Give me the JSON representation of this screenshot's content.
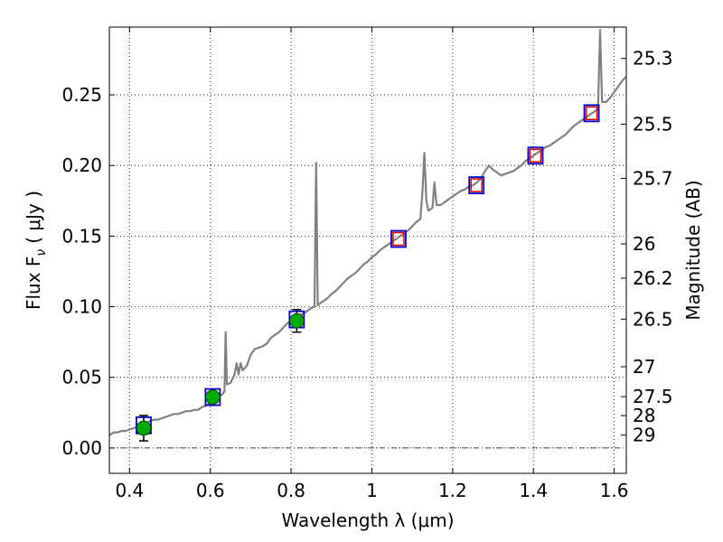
{
  "chart_data": {
    "type": "scatter",
    "title": "",
    "xlabel": "Wavelength  λ (μm)",
    "ylabel": "Flux  F",
    "ylabel_sub": "ν",
    "ylabel_unit": "( μJy )",
    "y2label": "Magnitude (AB)",
    "xlim": [
      0.35,
      1.63
    ],
    "ylim": [
      -0.018,
      0.298
    ],
    "grid": true,
    "x_ticks": [
      {
        "value": 0.4,
        "label": "0.4"
      },
      {
        "value": 0.6,
        "label": "0.6"
      },
      {
        "value": 0.8,
        "label": "0.8"
      },
      {
        "value": 1.0,
        "label": "1"
      },
      {
        "value": 1.2,
        "label": "1.2"
      },
      {
        "value": 1.4,
        "label": "1.4"
      },
      {
        "value": 1.6,
        "label": "1.6"
      }
    ],
    "y_ticks": [
      {
        "value": 0.0,
        "label": "0.00"
      },
      {
        "value": 0.05,
        "label": "0.05"
      },
      {
        "value": 0.1,
        "label": "0.10"
      },
      {
        "value": 0.15,
        "label": "0.15"
      },
      {
        "value": 0.2,
        "label": "0.20"
      },
      {
        "value": 0.25,
        "label": "0.25"
      }
    ],
    "mag_ticks": [
      {
        "flux": 0.2758,
        "label": "25.3"
      },
      {
        "flux": 0.2293,
        "label": "25.5"
      },
      {
        "flux": 0.1908,
        "label": "25.7"
      },
      {
        "flux": 0.1445,
        "label": "26"
      },
      {
        "flux": 0.1202,
        "label": "26.2"
      },
      {
        "flux": 0.0912,
        "label": "26.5"
      },
      {
        "flux": 0.0575,
        "label": "27"
      },
      {
        "flux": 0.0363,
        "label": "27.5"
      },
      {
        "flux": 0.0229,
        "label": "28"
      },
      {
        "flux": 0.0091,
        "label": "29"
      }
    ],
    "colors": {
      "spectrum": "#808080",
      "model_box": "#0000cc",
      "observed_point": "#00aa00",
      "upper_box": "#dd0000",
      "errorbar": "#000000",
      "zero_line": "#000000"
    },
    "spectrum": [
      [
        0.35,
        0.009
      ],
      [
        0.36,
        0.011
      ],
      [
        0.37,
        0.011
      ],
      [
        0.38,
        0.012
      ],
      [
        0.39,
        0.012
      ],
      [
        0.4,
        0.013
      ],
      [
        0.41,
        0.014
      ],
      [
        0.42,
        0.015
      ],
      [
        0.43,
        0.016
      ],
      [
        0.44,
        0.017
      ],
      [
        0.45,
        0.019
      ],
      [
        0.46,
        0.02
      ],
      [
        0.47,
        0.02
      ],
      [
        0.48,
        0.021
      ],
      [
        0.49,
        0.022
      ],
      [
        0.5,
        0.023
      ],
      [
        0.51,
        0.024
      ],
      [
        0.52,
        0.024
      ],
      [
        0.53,
        0.025
      ],
      [
        0.54,
        0.026
      ],
      [
        0.55,
        0.026
      ],
      [
        0.56,
        0.027
      ],
      [
        0.57,
        0.027
      ],
      [
        0.58,
        0.029
      ],
      [
        0.59,
        0.03
      ],
      [
        0.6,
        0.032
      ],
      [
        0.61,
        0.034
      ],
      [
        0.62,
        0.036
      ],
      [
        0.63,
        0.038
      ],
      [
        0.635,
        0.04
      ],
      [
        0.638,
        0.082
      ],
      [
        0.641,
        0.045
      ],
      [
        0.65,
        0.046
      ],
      [
        0.66,
        0.052
      ],
      [
        0.665,
        0.06
      ],
      [
        0.67,
        0.052
      ],
      [
        0.675,
        0.06
      ],
      [
        0.68,
        0.055
      ],
      [
        0.69,
        0.058
      ],
      [
        0.7,
        0.066
      ],
      [
        0.71,
        0.07
      ],
      [
        0.72,
        0.071
      ],
      [
        0.73,
        0.072
      ],
      [
        0.74,
        0.074
      ],
      [
        0.75,
        0.078
      ],
      [
        0.76,
        0.08
      ],
      [
        0.77,
        0.082
      ],
      [
        0.78,
        0.085
      ],
      [
        0.79,
        0.088
      ],
      [
        0.8,
        0.09
      ],
      [
        0.81,
        0.093
      ],
      [
        0.82,
        0.094
      ],
      [
        0.83,
        0.095
      ],
      [
        0.84,
        0.097
      ],
      [
        0.85,
        0.099
      ],
      [
        0.858,
        0.1
      ],
      [
        0.862,
        0.202
      ],
      [
        0.866,
        0.101
      ],
      [
        0.87,
        0.102
      ],
      [
        0.88,
        0.104
      ],
      [
        0.89,
        0.106
      ],
      [
        0.9,
        0.109
      ],
      [
        0.91,
        0.111
      ],
      [
        0.92,
        0.114
      ],
      [
        0.93,
        0.117
      ],
      [
        0.94,
        0.12
      ],
      [
        0.95,
        0.122
      ],
      [
        0.96,
        0.124
      ],
      [
        0.97,
        0.127
      ],
      [
        0.98,
        0.13
      ],
      [
        0.99,
        0.132
      ],
      [
        1.0,
        0.135
      ],
      [
        1.01,
        0.137
      ],
      [
        1.02,
        0.14
      ],
      [
        1.03,
        0.142
      ],
      [
        1.04,
        0.144
      ],
      [
        1.05,
        0.146
      ],
      [
        1.06,
        0.148
      ],
      [
        1.07,
        0.15
      ],
      [
        1.08,
        0.152
      ],
      [
        1.09,
        0.154
      ],
      [
        1.1,
        0.157
      ],
      [
        1.11,
        0.16
      ],
      [
        1.12,
        0.162
      ],
      [
        1.125,
        0.18
      ],
      [
        1.13,
        0.209
      ],
      [
        1.135,
        0.175
      ],
      [
        1.14,
        0.168
      ],
      [
        1.15,
        0.17
      ],
      [
        1.155,
        0.188
      ],
      [
        1.16,
        0.172
      ],
      [
        1.17,
        0.172
      ],
      [
        1.18,
        0.174
      ],
      [
        1.19,
        0.176
      ],
      [
        1.2,
        0.178
      ],
      [
        1.21,
        0.18
      ],
      [
        1.22,
        0.182
      ],
      [
        1.23,
        0.183
      ],
      [
        1.24,
        0.185
      ],
      [
        1.25,
        0.186
      ],
      [
        1.26,
        0.188
      ],
      [
        1.27,
        0.191
      ],
      [
        1.28,
        0.196
      ],
      [
        1.29,
        0.2
      ],
      [
        1.3,
        0.197
      ],
      [
        1.31,
        0.195
      ],
      [
        1.32,
        0.193
      ],
      [
        1.33,
        0.194
      ],
      [
        1.34,
        0.195
      ],
      [
        1.35,
        0.196
      ],
      [
        1.36,
        0.198
      ],
      [
        1.37,
        0.2
      ],
      [
        1.38,
        0.203
      ],
      [
        1.39,
        0.205
      ],
      [
        1.4,
        0.207
      ],
      [
        1.41,
        0.209
      ],
      [
        1.42,
        0.211
      ],
      [
        1.43,
        0.213
      ],
      [
        1.44,
        0.214
      ],
      [
        1.45,
        0.216
      ],
      [
        1.46,
        0.218
      ],
      [
        1.47,
        0.22
      ],
      [
        1.48,
        0.222
      ],
      [
        1.49,
        0.225
      ],
      [
        1.5,
        0.228
      ],
      [
        1.51,
        0.23
      ],
      [
        1.52,
        0.232
      ],
      [
        1.53,
        0.234
      ],
      [
        1.54,
        0.236
      ],
      [
        1.55,
        0.238
      ],
      [
        1.56,
        0.24
      ],
      [
        1.565,
        0.296
      ],
      [
        1.57,
        0.245
      ],
      [
        1.58,
        0.245
      ],
      [
        1.59,
        0.248
      ],
      [
        1.6,
        0.252
      ],
      [
        1.61,
        0.256
      ],
      [
        1.62,
        0.26
      ],
      [
        1.63,
        0.263
      ]
    ],
    "model_boxes": [
      {
        "x": 0.435,
        "y": 0.016
      },
      {
        "x": 0.606,
        "y": 0.036
      },
      {
        "x": 0.814,
        "y": 0.091
      },
      {
        "x": 1.066,
        "y": 0.148
      },
      {
        "x": 1.259,
        "y": 0.186
      },
      {
        "x": 1.405,
        "y": 0.207
      },
      {
        "x": 1.544,
        "y": 0.237
      }
    ],
    "observed_points": [
      {
        "x": 0.435,
        "y": 0.014,
        "yerr": 0.009
      },
      {
        "x": 0.606,
        "y": 0.036,
        "yerr": 0.004
      },
      {
        "x": 0.814,
        "y": 0.09,
        "yerr": 0.008
      }
    ],
    "upper_boxes": [
      {
        "x": 1.066,
        "y": 0.148
      },
      {
        "x": 1.259,
        "y": 0.186
      },
      {
        "x": 1.405,
        "y": 0.207
      },
      {
        "x": 1.544,
        "y": 0.237
      }
    ]
  }
}
